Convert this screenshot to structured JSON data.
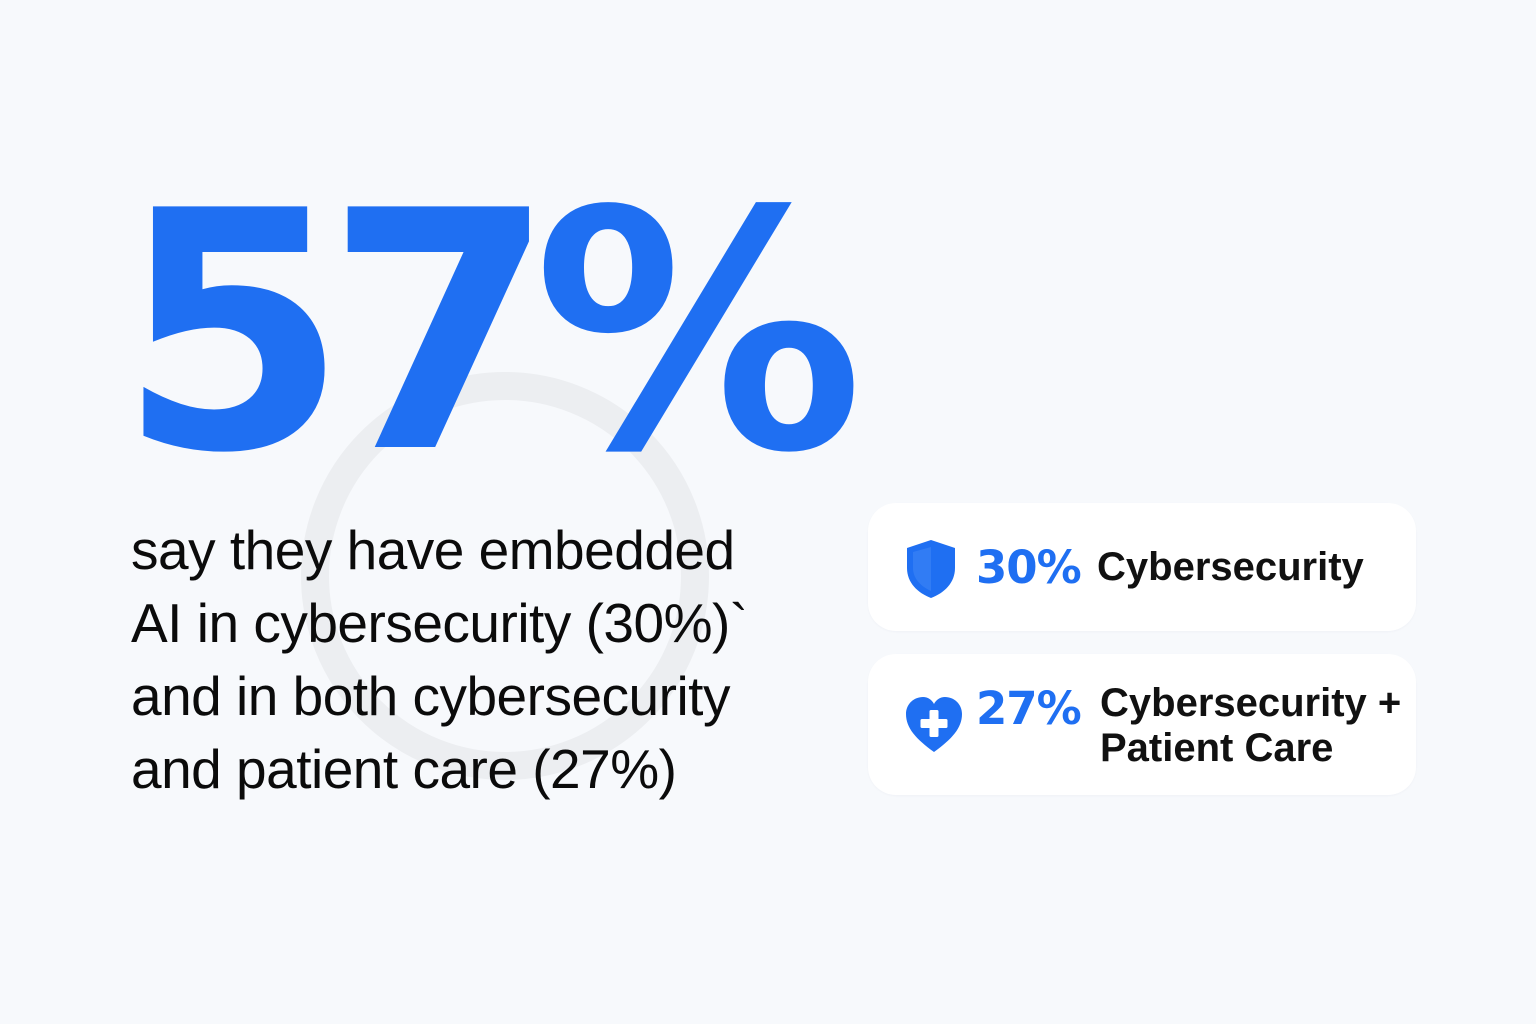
{
  "headline": {
    "value": "57%"
  },
  "description": {
    "lines": [
      "say they have embedded",
      "AI in cybersecurity (30%)`",
      "and in both cybersecurity",
      "and patient care (27%)"
    ]
  },
  "cards": [
    {
      "percent": "30%",
      "label_lines": [
        "Cybersecurity"
      ],
      "icon": "shield-icon"
    },
    {
      "percent": "27%",
      "label_lines": [
        "Cybersecurity +",
        "Patient Care"
      ],
      "icon": "heart-medical-icon"
    }
  ],
  "colors": {
    "accent": "#1f6ff2",
    "background": "#f7f9fc",
    "card": "#ffffff",
    "text": "#0b0b0b",
    "ring": "#eef0f2"
  }
}
